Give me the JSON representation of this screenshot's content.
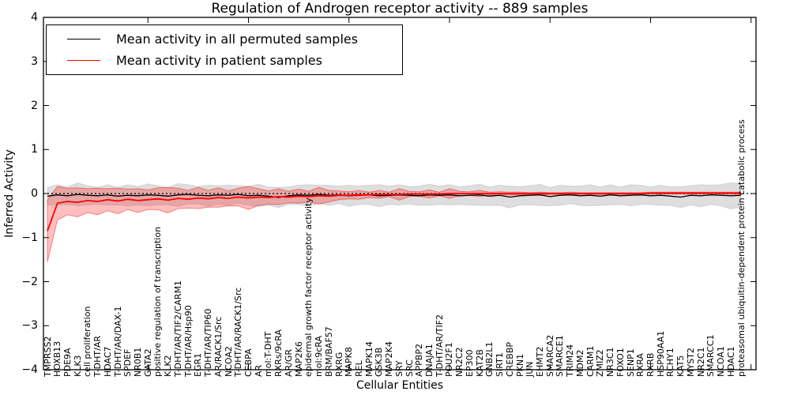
{
  "figure": {
    "title": "Regulation of Androgen receptor activity -- 889 samples",
    "xlabel": "Cellular Entities",
    "ylabel": "Inferred Activity"
  },
  "legend": {
    "entries": [
      {
        "label": "Mean activity in all permuted samples",
        "color": "#000000"
      },
      {
        "label": "Mean activity in patient samples",
        "color": "#ff0000"
      }
    ],
    "position": "upper-left"
  },
  "colors": {
    "permuted_line": "#000000",
    "patient_line": "#ff0000",
    "permuted_band_fill": "rgba(0,0,0,0.13)",
    "permuted_band_edge": "rgba(0,0,0,0.10)",
    "patient_band_fill": "rgba(255,0,0,0.25)",
    "patient_band_edge": "rgba(255,0,0,0.45)",
    "zero_line": "#000000",
    "frame": "#000000"
  },
  "chart_data": {
    "type": "line",
    "title": "Regulation of Androgen receptor activity -- 889 samples",
    "xlabel": "Cellular Entities",
    "ylabel": "Inferred Activity",
    "ylim": [
      -4,
      4
    ],
    "ytick_labels": [
      "4",
      "3",
      "2",
      "1",
      "0",
      "−1",
      "−2",
      "−3",
      "−4"
    ],
    "ytick_values": [
      4,
      3,
      2,
      1,
      0,
      -1,
      -2,
      -3,
      -4
    ],
    "x_major_ticks": [
      10,
      20,
      30,
      40,
      50,
      60,
      70
    ],
    "grid": false,
    "zero_line": "dotted",
    "legend_position": "upper-left",
    "categories": [
      "TMPRSS2",
      "HOXB13",
      "PDE9A",
      "KLK3",
      "cell proliferation",
      "T-DHT/AR",
      "HDAC7",
      "T-DHT/AR/DAX-1",
      "SPDEF",
      "NR0B1",
      "GATA2",
      "positive regulation of transcription",
      "KLK2",
      "T-DHT/AR/TIF2/CARM1",
      "T-DHT/AR/Hsp90",
      "EGR1",
      "T-DHT/AR/TIP60",
      "AR/RACK1/Src",
      "NCOA2",
      "T-DHT/AR/RACK1/Src",
      "CEBPA",
      "AR",
      "mol:T-DHT",
      "RXRs/9cRA",
      "AR/GR",
      "MAP2K6",
      "epidermal growth factor receptor activity",
      "mol:9cRA",
      "BRM/BAF57",
      "RXRG",
      "MAPK8",
      "REL",
      "MAPK14",
      "GSK3B",
      "MAP2K4",
      "SRY",
      "SRC",
      "APPBP2",
      "DNAJA1",
      "T-DHT/AR/TIF2",
      "POU2F1",
      "NR2C2",
      "EP300",
      "KAT2B",
      "GNB2L1",
      "SIRT1",
      "CREBBP",
      "PKN1",
      "JUN",
      "EHMT2",
      "SMARCA2",
      "SMARCE1",
      "TRIM24",
      "MDM2",
      "CARM1",
      "ZMIZ2",
      "NR3C1",
      "FOXO1",
      "SENP1",
      "RXRA",
      "RXRB",
      "HSP90AA1",
      "RCHY1",
      "KAT5",
      "MYST2",
      "NR2C1",
      "SMARCC1",
      "NCOA1",
      "HDAC1",
      "proteasomal ubiquitin-dependent protein catabolic process"
    ],
    "series": [
      {
        "name": "Mean activity in all permuted samples",
        "color": "#000000",
        "values": [
          -0.06,
          -0.03,
          -0.05,
          -0.02,
          -0.04,
          -0.05,
          -0.03,
          -0.06,
          -0.04,
          -0.05,
          -0.03,
          -0.04,
          -0.06,
          -0.03,
          -0.02,
          -0.04,
          -0.05,
          -0.03,
          -0.04,
          -0.02,
          -0.05,
          -0.04,
          -0.06,
          -0.09,
          -0.05,
          -0.03,
          -0.04,
          -0.02,
          -0.04,
          -0.03,
          -0.05,
          -0.04,
          -0.03,
          -0.05,
          -0.04,
          -0.03,
          -0.04,
          -0.05,
          -0.03,
          -0.04,
          -0.03,
          -0.05,
          -0.04,
          -0.03,
          -0.06,
          -0.04,
          -0.08,
          -0.05,
          -0.04,
          -0.03,
          -0.07,
          -0.04,
          -0.03,
          -0.05,
          -0.04,
          -0.06,
          -0.03,
          -0.05,
          -0.04,
          -0.03,
          -0.05,
          -0.04,
          -0.06,
          -0.08,
          -0.04,
          -0.05,
          -0.03,
          -0.04,
          -0.05,
          -0.04
        ],
        "band_halfwidth": [
          0.2,
          0.23,
          0.2,
          0.26,
          0.22,
          0.19,
          0.23,
          0.2,
          0.24,
          0.21,
          0.25,
          0.22,
          0.2,
          0.26,
          0.22,
          0.2,
          0.24,
          0.21,
          0.23,
          0.2,
          0.22,
          0.25,
          0.21,
          0.23,
          0.2,
          0.22,
          0.24,
          0.21,
          0.23,
          0.2,
          0.24,
          0.21,
          0.22,
          0.25,
          0.21,
          0.23,
          0.2,
          0.22,
          0.24,
          0.21,
          0.23,
          0.2,
          0.22,
          0.24,
          0.21,
          0.23,
          0.25,
          0.21,
          0.22,
          0.24,
          0.21,
          0.23,
          0.2,
          0.22,
          0.24,
          0.21,
          0.23,
          0.2,
          0.24,
          0.22,
          0.2,
          0.23,
          0.21,
          0.24,
          0.22,
          0.25,
          0.22,
          0.24,
          0.3,
          0.26
        ]
      },
      {
        "name": "Mean activity in patient samples",
        "color": "#ff0000",
        "values": [
          -0.85,
          -0.22,
          -0.18,
          -0.2,
          -0.16,
          -0.18,
          -0.14,
          -0.17,
          -0.13,
          -0.16,
          -0.14,
          -0.12,
          -0.15,
          -0.11,
          -0.13,
          -0.1,
          -0.12,
          -0.09,
          -0.11,
          -0.08,
          -0.1,
          -0.08,
          -0.09,
          -0.07,
          -0.08,
          -0.06,
          -0.07,
          -0.05,
          -0.06,
          -0.04,
          -0.04,
          -0.03,
          -0.03,
          -0.02,
          -0.02,
          -0.02,
          -0.01,
          -0.01,
          -0.01,
          -0.01,
          0.0,
          0.0,
          0.0,
          0.0,
          0.0,
          0.0,
          0.0,
          0.0,
          0.0,
          0.0,
          0.0,
          0.0,
          0.0,
          0.0,
          0.0,
          0.0,
          0.0,
          0.0,
          0.0,
          0.0,
          0.01,
          0.01,
          0.01,
          0.01,
          0.01,
          0.01,
          0.01,
          0.01,
          0.01,
          0.01
        ],
        "band_halfwidth": [
          0.7,
          0.38,
          0.3,
          0.33,
          0.27,
          0.3,
          0.25,
          0.29,
          0.23,
          0.27,
          0.22,
          0.25,
          0.29,
          0.23,
          0.2,
          0.24,
          0.19,
          0.22,
          0.17,
          0.2,
          0.26,
          0.19,
          0.15,
          0.18,
          0.13,
          0.16,
          0.12,
          0.19,
          0.13,
          0.1,
          0.08,
          0.1,
          0.06,
          0.09,
          0.05,
          0.13,
          0.06,
          0.05,
          0.09,
          0.04,
          0.11,
          0.05,
          0.04,
          0.07,
          0.03,
          0.04,
          0.03,
          0.03,
          0.02,
          0.03,
          0.02,
          0.02,
          0.03,
          0.02,
          0.02,
          0.02,
          0.02,
          0.02,
          0.02,
          0.02,
          0.02,
          0.02,
          0.02,
          0.02,
          0.02,
          0.02,
          0.02,
          0.02,
          0.02,
          0.02
        ]
      }
    ]
  }
}
